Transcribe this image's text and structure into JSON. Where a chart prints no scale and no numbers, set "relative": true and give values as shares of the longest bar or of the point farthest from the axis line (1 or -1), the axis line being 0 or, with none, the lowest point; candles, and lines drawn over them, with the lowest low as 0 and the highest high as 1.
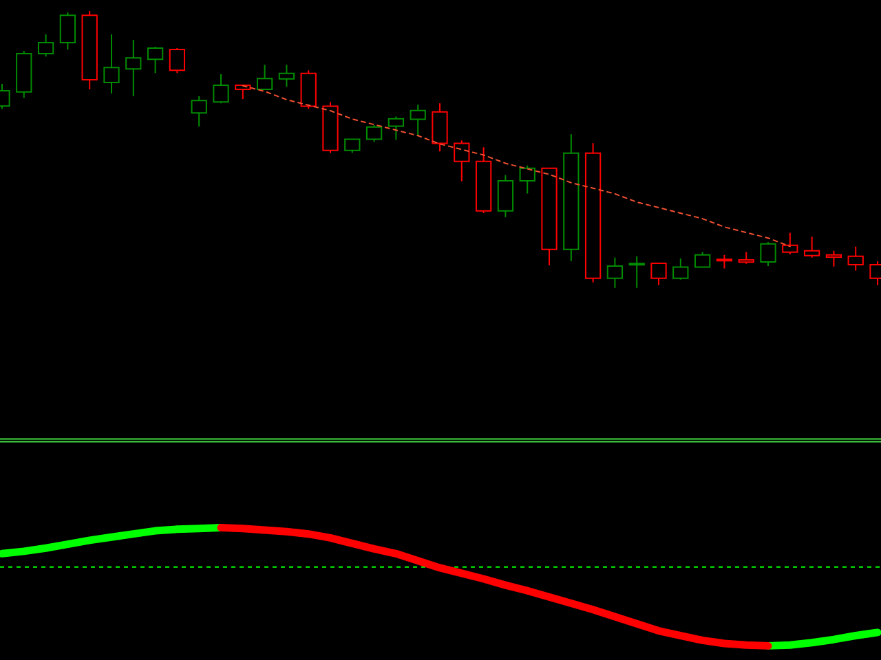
{
  "chart_data": [
    {
      "type": "candlestick",
      "relative": true,
      "categories": [
        null,
        null,
        null,
        null,
        null,
        null,
        null,
        null,
        null,
        null,
        null,
        null,
        null,
        null,
        null,
        null,
        null,
        null,
        null,
        null,
        null,
        null,
        null,
        null,
        null,
        null,
        null,
        null,
        null,
        null,
        null,
        null,
        null,
        null,
        null,
        null,
        null,
        null,
        null,
        null,
        null
      ],
      "ohlc": [
        [
          0.657,
          0.737,
          0.647,
          0.712
        ],
        [
          0.708,
          0.856,
          0.687,
          0.846
        ],
        [
          0.846,
          0.916,
          0.836,
          0.886
        ],
        [
          0.886,
          0.995,
          0.861,
          0.985
        ],
        [
          0.985,
          1.0,
          0.717,
          0.752
        ],
        [
          0.742,
          0.916,
          0.702,
          0.796
        ],
        [
          0.791,
          0.896,
          0.692,
          0.831
        ],
        [
          0.826,
          0.871,
          0.776,
          0.866
        ],
        [
          0.861,
          0.866,
          0.776,
          0.786
        ],
        [
          0.632,
          0.692,
          0.583,
          0.677
        ],
        [
          0.672,
          0.772,
          0.667,
          0.732
        ],
        [
          0.732,
          0.732,
          0.682,
          0.717
        ],
        [
          0.717,
          0.806,
          0.717,
          0.756
        ],
        [
          0.755,
          0.806,
          0.727,
          0.775
        ],
        [
          0.775,
          0.786,
          0.647,
          0.656
        ],
        [
          0.656,
          0.672,
          0.488,
          0.497
        ],
        [
          0.497,
          0.538,
          0.488,
          0.537
        ],
        [
          0.537,
          0.588,
          0.528,
          0.581
        ],
        [
          0.584,
          0.619,
          0.535,
          0.611
        ],
        [
          0.609,
          0.662,
          0.548,
          0.641
        ],
        [
          0.636,
          0.667,
          0.493,
          0.522
        ],
        [
          0.522,
          0.533,
          0.385,
          0.457
        ],
        [
          0.457,
          0.508,
          0.27,
          0.278
        ],
        [
          0.278,
          0.407,
          0.256,
          0.387
        ],
        [
          0.387,
          0.442,
          0.341,
          0.432
        ],
        [
          0.432,
          0.434,
          0.082,
          0.139
        ],
        [
          0.139,
          0.555,
          0.097,
          0.487
        ],
        [
          0.487,
          0.523,
          0.02,
          0.035
        ],
        [
          0.035,
          0.109,
          0.0,
          0.079
        ],
        [
          0.083,
          0.114,
          0.0,
          0.088
        ],
        [
          0.089,
          0.089,
          0.01,
          0.035
        ],
        [
          0.035,
          0.106,
          0.03,
          0.075
        ],
        [
          0.075,
          0.129,
          0.073,
          0.119
        ],
        [
          0.103,
          0.119,
          0.07,
          0.098
        ],
        [
          0.101,
          0.129,
          0.087,
          0.093
        ],
        [
          0.094,
          0.165,
          0.079,
          0.159
        ],
        [
          0.154,
          0.199,
          0.121,
          0.129
        ],
        [
          0.134,
          0.185,
          0.109,
          0.117
        ],
        [
          0.119,
          0.134,
          0.077,
          0.111
        ],
        [
          0.114,
          0.149,
          0.063,
          0.084
        ],
        [
          0.084,
          0.096,
          0.01,
          0.035
        ]
      ],
      "colors": [
        "#008c00",
        "#008c00",
        "#008c00",
        "#008c00",
        "#ff0000",
        "#008c00",
        "#008c00",
        "#008c00",
        "#ff0000",
        "#008c00",
        "#008c00",
        "#ff0000",
        "#008c00",
        "#008c00",
        "#ff0000",
        "#ff0000",
        "#008c00",
        "#008c00",
        "#008c00",
        "#008c00",
        "#ff0000",
        "#ff0000",
        "#ff0000",
        "#008c00",
        "#008c00",
        "#ff0000",
        "#008c00",
        "#ff0000",
        "#008c00",
        "#008c00",
        "#ff0000",
        "#008c00",
        "#008c00",
        "#ff0000",
        "#ff0000",
        "#008c00",
        "#ff0000",
        "#ff0000",
        "#ff0000",
        "#ff0000",
        "#ff0000"
      ],
      "series": [
        {
          "type": "line",
          "color": "#f05030",
          "line_style": "dashed",
          "values": [
            null,
            null,
            null,
            null,
            null,
            null,
            null,
            null,
            null,
            null,
            null,
            0.73,
            0.71,
            0.68,
            0.66,
            0.64,
            0.61,
            0.59,
            0.57,
            0.55,
            0.52,
            0.5,
            0.48,
            0.45,
            0.43,
            0.41,
            0.38,
            0.36,
            0.34,
            0.31,
            0.29,
            0.27,
            0.25,
            0.22,
            0.2,
            0.18,
            0.15,
            null,
            null,
            null,
            null
          ]
        }
      ]
    },
    {
      "type": "line",
      "relative": true,
      "categories": [
        null,
        null,
        null,
        null,
        null,
        null,
        null,
        null,
        null,
        null,
        null,
        null,
        null,
        null,
        null,
        null,
        null,
        null,
        null,
        null,
        null,
        null,
        null,
        null,
        null,
        null,
        null,
        null,
        null,
        null,
        null,
        null,
        null,
        null,
        null,
        null,
        null,
        null,
        null,
        null,
        null
      ],
      "series": [
        {
          "color": "#00ff00",
          "values": [
            0.17,
            0.2,
            0.24,
            0.29,
            0.34,
            0.38,
            0.42,
            0.46,
            0.48,
            0.49,
            0.5,
            null,
            null,
            null,
            null,
            null,
            null,
            null,
            null,
            null,
            null,
            null,
            null,
            null,
            null,
            null,
            null,
            null,
            null,
            null,
            null,
            null,
            null,
            null,
            null,
            -1,
            -0.99,
            -0.96,
            -0.92,
            -0.87,
            -0.83
          ]
        },
        {
          "color": "#ff0000",
          "values": [
            null,
            null,
            null,
            null,
            null,
            null,
            null,
            null,
            null,
            null,
            0.5,
            0.49,
            0.47,
            0.45,
            0.42,
            0.37,
            0.3,
            0.23,
            0.17,
            0.08,
            -0.01,
            -0.08,
            -0.15,
            -0.23,
            -0.3,
            -0.38,
            -0.46,
            -0.54,
            -0.63,
            -0.72,
            -0.81,
            -0.87,
            -0.93,
            -0.97,
            -0.99,
            -1,
            null,
            null,
            null,
            null,
            null
          ]
        }
      ],
      "ref_lines": [
        {
          "axis": "y",
          "value": 0,
          "color": "#00ff00",
          "line_style": "dashed"
        }
      ]
    }
  ]
}
